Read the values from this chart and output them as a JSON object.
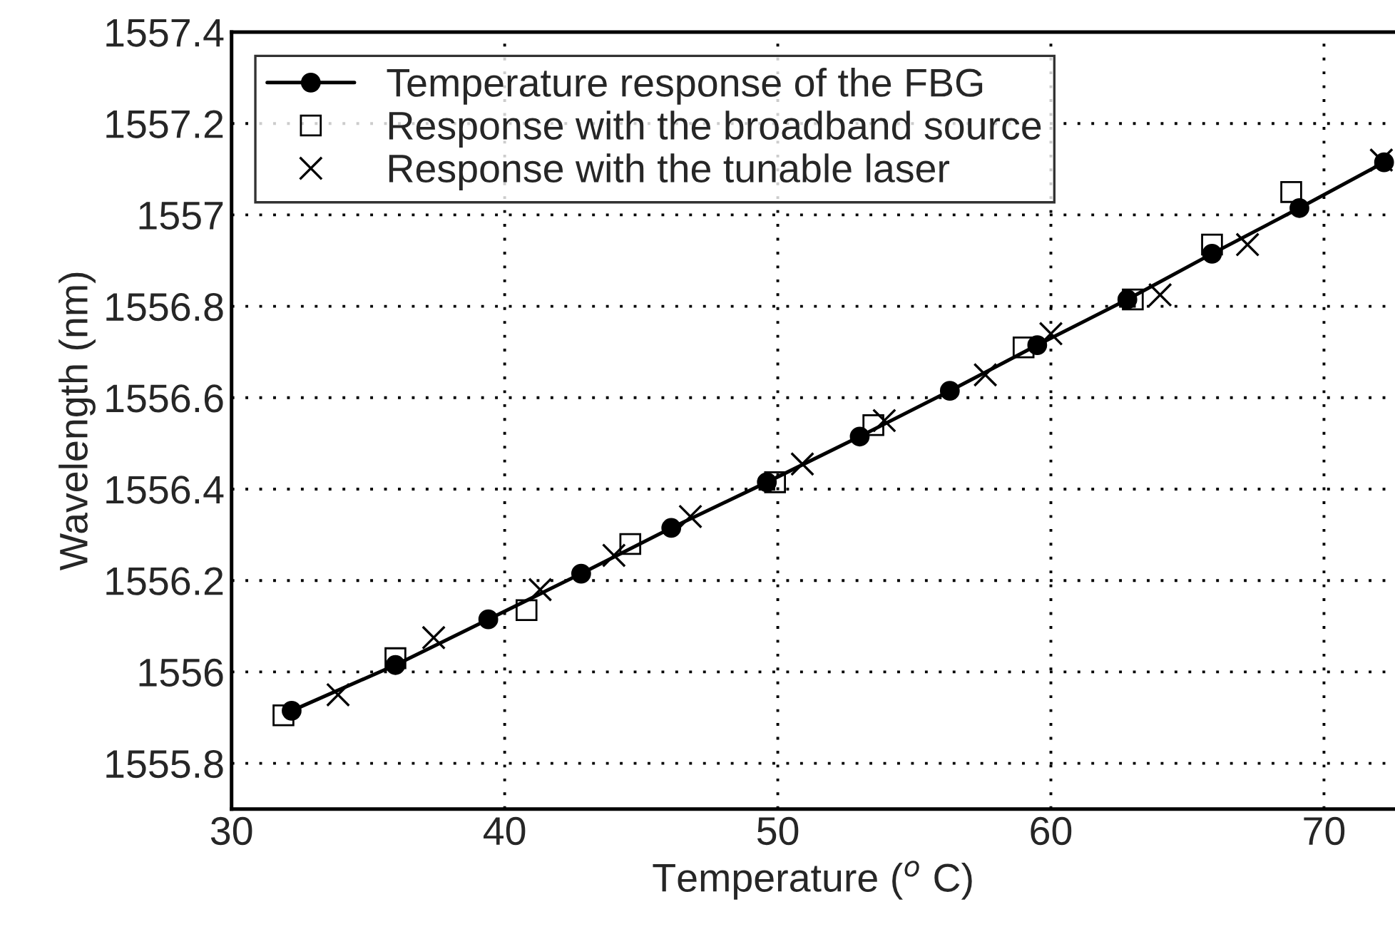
{
  "chart_data": {
    "type": "line",
    "xlabel": "Temperature ($^{o}$ C)",
    "ylabel": "Wavelength (nm)",
    "xlim": [
      30,
      72.6
    ],
    "xticks": [
      30,
      40,
      50,
      60,
      70
    ],
    "ylim": [
      1555.7,
      1557.4
    ],
    "yticks": [
      {
        "value": 1555.8,
        "label": "1555.8"
      },
      {
        "value": 1556,
        "label": "1556"
      },
      {
        "value": 1556.2,
        "label": "1556.2"
      },
      {
        "value": 1556.4,
        "label": "1556.4"
      },
      {
        "value": 1556.6,
        "label": "1556.6"
      },
      {
        "value": 1556.8,
        "label": "1556.8"
      },
      {
        "value": 1557,
        "label": "1557"
      },
      {
        "value": 1557.2,
        "label": "1557.2"
      },
      {
        "value": 1557.4,
        "label": "1557.4"
      }
    ],
    "grid": true,
    "legend": "top left",
    "series": [
      {
        "name": "Temperature response of the FBG",
        "marker": "circle",
        "line_style": "solid",
        "color": "#000000",
        "x": [
          32.2,
          36.0,
          39.4,
          42.8,
          46.1,
          49.6,
          53.0,
          56.3,
          59.5,
          62.8,
          65.9,
          69.1,
          72.2
        ],
        "values": [
          1555.915,
          1556.015,
          1556.115,
          1556.215,
          1556.315,
          1556.415,
          1556.515,
          1556.615,
          1556.715,
          1556.815,
          1556.915,
          1557.015,
          1557.115
        ]
      },
      {
        "name": "Response with the broadband source",
        "type": "scatter",
        "marker": "square",
        "color": "#000000",
        "x": [
          31.9,
          36.0,
          40.8,
          44.6,
          49.9,
          53.5,
          59.0,
          63.0,
          65.9,
          68.8
        ],
        "values": [
          1555.905,
          1556.03,
          1556.135,
          1556.28,
          1556.415,
          1556.54,
          1556.71,
          1556.815,
          1556.935,
          1557.05
        ]
      },
      {
        "name": "Response with the tunable laser",
        "type": "scatter",
        "marker": "cross",
        "color": "#000000",
        "x": [
          33.9,
          37.4,
          41.3,
          44.0,
          46.8,
          50.9,
          53.9,
          57.6,
          60.0,
          64.0,
          67.2,
          72.1
        ],
        "values": [
          1555.95,
          1556.075,
          1556.18,
          1556.255,
          1556.34,
          1556.455,
          1556.55,
          1556.65,
          1556.74,
          1556.825,
          1556.935,
          1557.12
        ]
      }
    ]
  }
}
